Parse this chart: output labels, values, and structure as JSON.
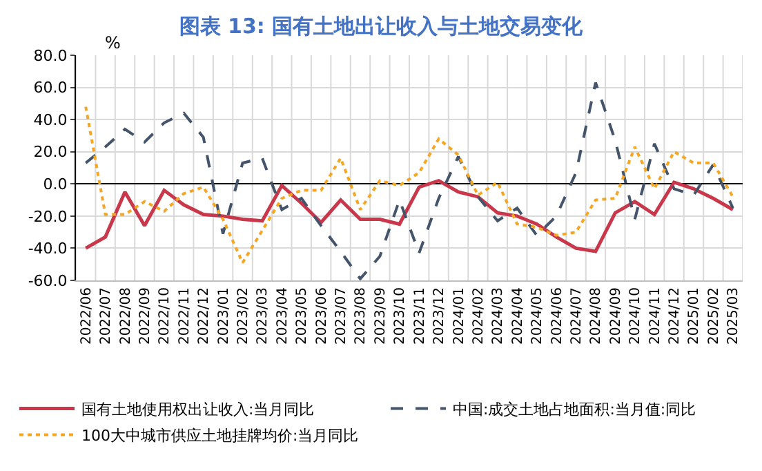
{
  "chart_data": {
    "type": "line",
    "title": "图表 13: 国有土地出让收入与土地交易变化",
    "ylabel": "%",
    "categories": [
      "2022/06",
      "2022/07",
      "2022/08",
      "2022/09",
      "2022/10",
      "2022/11",
      "2022/12",
      "2023/01",
      "2023/02",
      "2023/03",
      "2023/04",
      "2023/05",
      "2023/06",
      "2023/07",
      "2023/08",
      "2023/09",
      "2023/10",
      "2023/11",
      "2023/12",
      "2024/01",
      "2024/02",
      "2024/03",
      "2024/04",
      "2024/05",
      "2024/06",
      "2024/07",
      "2024/08",
      "2024/09",
      "2024/10",
      "2024/11",
      "2024/12",
      "2025/01",
      "2025/02",
      "2025/03"
    ],
    "series": [
      {
        "name": "国有土地使用权出让收入:当月同比",
        "color": "#c8374a",
        "line_style": "solid",
        "values": [
          -40,
          -33,
          -5,
          -26,
          -4,
          -13,
          -19,
          -20,
          -22,
          -23,
          -1,
          -12,
          -24,
          -10,
          -22,
          -22,
          -25,
          -2,
          2,
          -5,
          -8,
          -18,
          -20,
          -25,
          -33,
          -40,
          -42,
          -18,
          -11,
          -19,
          1,
          -3,
          -9,
          -16
        ]
      },
      {
        "name": "中国:成交土地占地面积:当月值:同比",
        "color": "#44546a",
        "line_style": "dashed",
        "values": [
          13,
          23,
          34,
          26,
          38,
          44,
          29,
          -31,
          13,
          16,
          -16,
          -9,
          -26,
          -42,
          -59,
          -45,
          -10,
          -43,
          -9,
          17,
          -8,
          -23,
          -15,
          -32,
          -20,
          7,
          63,
          27,
          -22,
          25,
          -3,
          -7,
          12,
          -15
        ]
      },
      {
        "name": "100大中城市供应土地挂牌均价:当月同比",
        "color": "#f5a623",
        "line_style": "dotted",
        "values": [
          48,
          -19,
          -19,
          -11,
          -17,
          -6,
          -2,
          -22,
          -49,
          -29,
          -9,
          -4,
          -4,
          16,
          -16,
          2,
          -1,
          7,
          28,
          18,
          -7,
          1,
          -25,
          -27,
          -32,
          -30,
          -10,
          -9,
          23,
          -3,
          20,
          13,
          13,
          -8
        ]
      }
    ],
    "ylim": [
      -60,
      80
    ],
    "yticks": [
      {
        "value": -60,
        "label": "-60.0"
      },
      {
        "value": -40,
        "label": "-40.0"
      },
      {
        "value": -20,
        "label": "-20.0"
      },
      {
        "value": 0,
        "label": "0.0"
      },
      {
        "value": 20,
        "label": "20.0"
      },
      {
        "value": 40,
        "label": "40.0"
      },
      {
        "value": 60,
        "label": "60.0"
      },
      {
        "value": 80,
        "label": "80.0"
      }
    ],
    "grid": true,
    "legend": "bottom",
    "marker": "none"
  }
}
